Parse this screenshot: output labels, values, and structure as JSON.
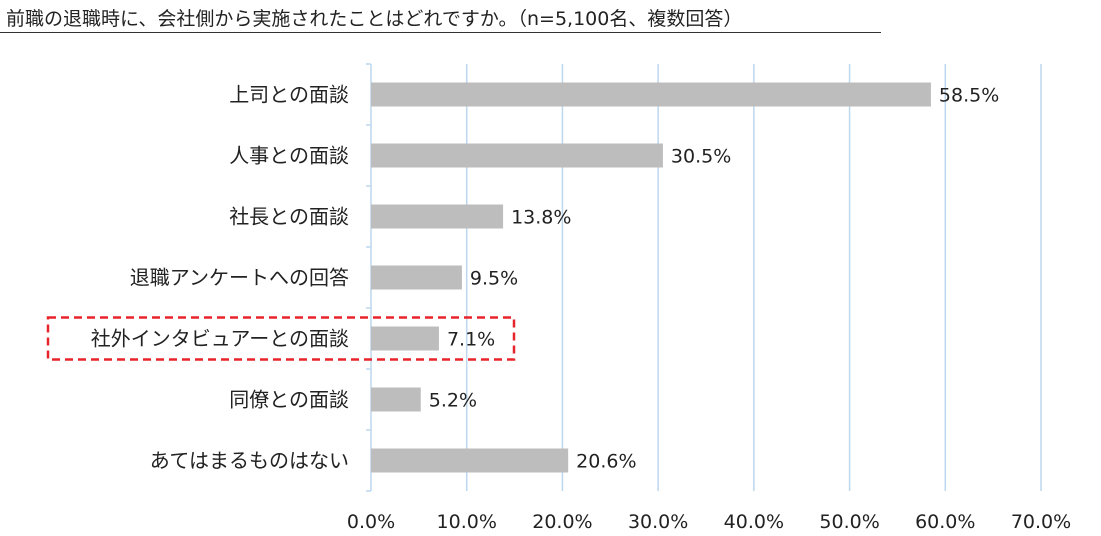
{
  "chart_data": {
    "type": "bar",
    "orientation": "horizontal",
    "title": "前職の退職時に、会社側から実施されたことはどれですか。（n=5,100名、複数回答）",
    "categories": [
      "上司との面談",
      "人事との面談",
      "社長との面談",
      "退職アンケートへの回答",
      "社外インタビュアーとの面談",
      "同僚との面談",
      "あてはまるものはない"
    ],
    "values": [
      58.5,
      30.5,
      13.8,
      9.5,
      7.1,
      5.2,
      20.6
    ],
    "value_labels": [
      "58.5%",
      "30.5%",
      "13.8%",
      "9.5%",
      "7.1%",
      "5.2%",
      "20.6%"
    ],
    "xlim": [
      0,
      70
    ],
    "x_ticks": [
      0,
      10,
      20,
      30,
      40,
      50,
      60,
      70
    ],
    "x_tick_labels": [
      "0.0%",
      "10.0%",
      "20.0%",
      "30.0%",
      "40.0%",
      "50.0%",
      "60.0%",
      "70.0%"
    ],
    "highlighted_category": "社外インタビュアーとの面談",
    "bar_color": "#bdbdbd",
    "grid_color": "#bdd7ee",
    "highlight_color": "#e8242b",
    "grid": true
  }
}
